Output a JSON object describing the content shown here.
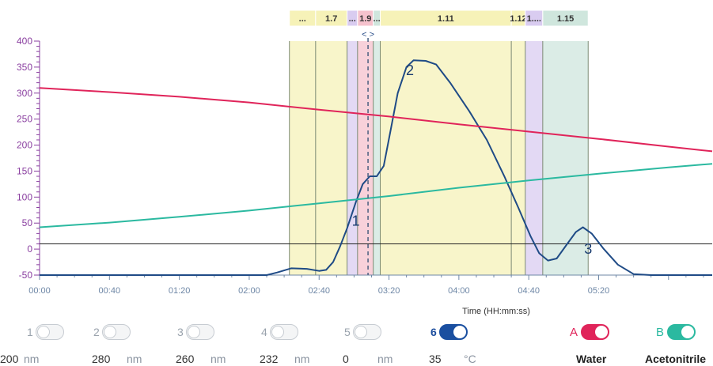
{
  "chart_data": {
    "type": "line",
    "xlabel": "Time (HH:mm:ss)",
    "x_range_seconds": [
      0,
      385
    ],
    "ylim": [
      -50,
      400
    ],
    "y_ticks": [
      -50,
      0,
      50,
      100,
      150,
      200,
      250,
      300,
      350,
      400
    ],
    "x_ticks": [
      "00:00",
      "00:40",
      "01:20",
      "02:00",
      "02:40",
      "03:20",
      "04:00",
      "04:40",
      "05:20"
    ],
    "threshold": 10,
    "marker_time_seconds": 188,
    "nav_symbol": "< >",
    "series": [
      {
        "key": "absorbance",
        "color": "#1f4b86",
        "points": [
          [
            0,
            -50
          ],
          [
            130,
            -50
          ],
          [
            136,
            -45
          ],
          [
            144,
            -37
          ],
          [
            153,
            -38
          ],
          [
            160,
            -42
          ],
          [
            164,
            -40
          ],
          [
            168,
            -25
          ],
          [
            172,
            5
          ],
          [
            176,
            40
          ],
          [
            181,
            90
          ],
          [
            185,
            125
          ],
          [
            189,
            140
          ],
          [
            193,
            140
          ],
          [
            197,
            160
          ],
          [
            201,
            230
          ],
          [
            205,
            300
          ],
          [
            210,
            350
          ],
          [
            214,
            363
          ],
          [
            221,
            362
          ],
          [
            227,
            355
          ],
          [
            235,
            320
          ],
          [
            246,
            265
          ],
          [
            256,
            210
          ],
          [
            266,
            140
          ],
          [
            274,
            80
          ],
          [
            281,
            25
          ],
          [
            286,
            -8
          ],
          [
            291,
            -22
          ],
          [
            296,
            -18
          ],
          [
            302,
            10
          ],
          [
            307,
            33
          ],
          [
            311,
            42
          ],
          [
            316,
            30
          ],
          [
            323,
            0
          ],
          [
            331,
            -30
          ],
          [
            340,
            -48
          ],
          [
            350,
            -50
          ],
          [
            385,
            -50
          ]
        ]
      },
      {
        "key": "water",
        "color": "#e0245a",
        "points": [
          [
            0,
            310
          ],
          [
            40,
            302
          ],
          [
            80,
            293
          ],
          [
            120,
            282
          ],
          [
            160,
            268
          ],
          [
            200,
            255
          ],
          [
            240,
            240
          ],
          [
            280,
            226
          ],
          [
            320,
            212
          ],
          [
            360,
            197
          ],
          [
            385,
            188
          ]
        ]
      },
      {
        "key": "acetonitrile",
        "color": "#2bb9a0",
        "points": [
          [
            0,
            42
          ],
          [
            40,
            51
          ],
          [
            80,
            62
          ],
          [
            120,
            74
          ],
          [
            160,
            88
          ],
          [
            200,
            102
          ],
          [
            240,
            118
          ],
          [
            280,
            132
          ],
          [
            320,
            145
          ],
          [
            360,
            157
          ],
          [
            385,
            164
          ]
        ]
      }
    ],
    "peak_labels": [
      {
        "text": "1",
        "x": 181,
        "y": 45
      },
      {
        "text": "2",
        "x": 212,
        "y": 335
      },
      {
        "text": "3",
        "x": 314,
        "y": -9
      }
    ],
    "fractions": [
      {
        "label": "...",
        "start": 143,
        "end": 158,
        "color": "#f6f2b8"
      },
      {
        "label": "1.7",
        "start": 158,
        "end": 176,
        "color": "#f6f2b8"
      },
      {
        "label": "...",
        "start": 176,
        "end": 182,
        "color": "#d9ccf0"
      },
      {
        "label": "1.9",
        "start": 182,
        "end": 191,
        "color": "#f5c2cd"
      },
      {
        "label": "...",
        "start": 191,
        "end": 195,
        "color": "#cfe6dd"
      },
      {
        "label": "1.11",
        "start": 195,
        "end": 270,
        "color": "#f6f2b8"
      },
      {
        "label": "1.12",
        "start": 270,
        "end": 278,
        "color": "#f6f2b8"
      },
      {
        "label": "1....",
        "start": 278,
        "end": 288,
        "color": "#d9ccf0"
      },
      {
        "label": "1.15",
        "start": 288,
        "end": 314,
        "color": "#cfe6dd"
      }
    ],
    "grid": false
  },
  "channels": [
    {
      "num": "1",
      "value": "200",
      "unit": "nm",
      "on": false
    },
    {
      "num": "2",
      "value": "280",
      "unit": "nm",
      "on": false
    },
    {
      "num": "3",
      "value": "260",
      "unit": "nm",
      "on": false
    },
    {
      "num": "4",
      "value": "232",
      "unit": "nm",
      "on": false
    },
    {
      "num": "5",
      "value": "0",
      "unit": "nm",
      "on": false
    },
    {
      "num": "6",
      "value": "35",
      "unit": "°C",
      "on": true,
      "color": "#1a4fa0"
    }
  ],
  "solvents": [
    {
      "letter": "A",
      "name": "Water",
      "color": "#e0245a",
      "on": true
    },
    {
      "letter": "B",
      "name": "Acetonitrile",
      "color": "#2bb9a0",
      "on": true
    }
  ]
}
